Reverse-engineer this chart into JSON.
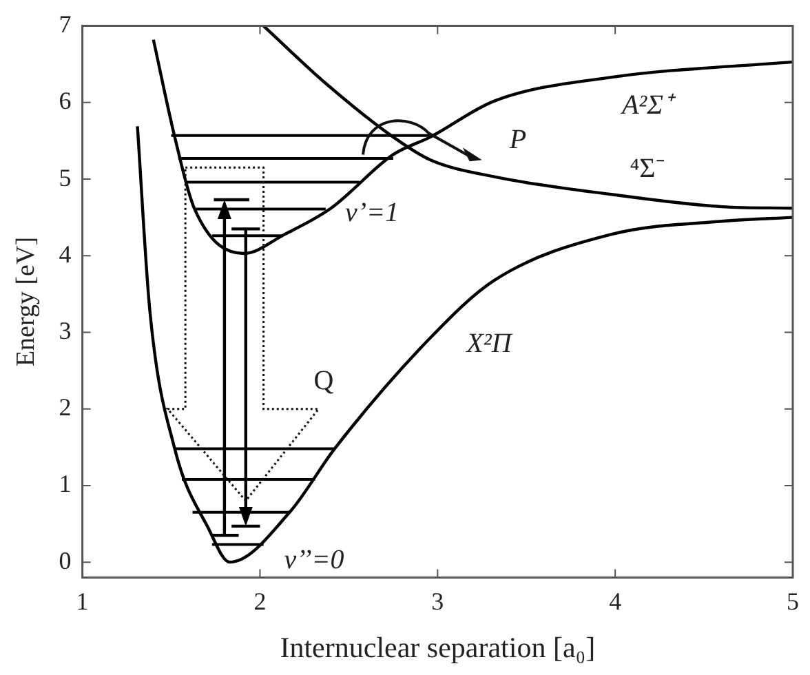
{
  "chart_data": {
    "type": "line",
    "xlabel": "Internuclear separation [a₀]",
    "ylabel": "Energy [eV]",
    "xlim": [
      1,
      5
    ],
    "xticks": [
      1,
      2,
      3,
      4,
      5
    ],
    "ylim": [
      -0.2,
      7
    ],
    "yticks": [
      0,
      1,
      2,
      3,
      4,
      5,
      6,
      7
    ],
    "marker": "none",
    "line_style": "solid",
    "series": [
      {
        "color": "#000000",
        "x": [
          1.31,
          1.38,
          1.52,
          1.71,
          1.83,
          2.17,
          2.42,
          2.96,
          3.32,
          3.98,
          4.6,
          5.0
        ],
        "values": [
          5.69,
          3.28,
          1.48,
          0.44,
          0.0,
          0.66,
          1.48,
          2.93,
          3.68,
          4.28,
          4.45,
          4.5
        ]
      },
      {
        "color": "#000000",
        "x": [
          1.4,
          1.52,
          1.63,
          1.91,
          2.14,
          2.4,
          2.75,
          2.96,
          3.32,
          3.98,
          5.0
        ],
        "values": [
          6.82,
          5.55,
          4.62,
          4.03,
          4.28,
          4.62,
          5.32,
          5.55,
          6.02,
          6.33,
          6.53
        ]
      },
      {
        "color": "#000000",
        "x": [
          2.02,
          2.37,
          2.75,
          2.96,
          3.32,
          3.98,
          4.6,
          5.0
        ],
        "values": [
          7.0,
          6.25,
          5.55,
          5.25,
          5.03,
          4.8,
          4.64,
          4.62
        ]
      },
      {
        "color": "#000000",
        "x": [
          1.5,
          2.96
        ],
        "values": [
          5.57,
          5.57
        ]
      },
      {
        "color": "#000000",
        "x": [
          1.54,
          2.75
        ],
        "values": [
          5.27,
          5.27
        ]
      },
      {
        "color": "#000000",
        "x": [
          1.59,
          2.56
        ],
        "values": [
          4.96,
          4.96
        ]
      },
      {
        "color": "#000000",
        "x": [
          1.64,
          2.37
        ],
        "values": [
          4.61,
          4.61
        ]
      },
      {
        "color": "#000000",
        "x": [
          1.73,
          2.13
        ],
        "values": [
          4.26,
          4.26
        ]
      },
      {
        "color": "#000000",
        "x": [
          1.52,
          2.42
        ],
        "values": [
          1.48,
          1.48
        ]
      },
      {
        "color": "#000000",
        "x": [
          1.56,
          2.31
        ],
        "values": [
          1.08,
          1.08
        ]
      },
      {
        "color": "#000000",
        "x": [
          1.62,
          2.17
        ],
        "values": [
          0.65,
          0.65
        ]
      },
      {
        "color": "#000000",
        "x": [
          1.73,
          2.02
        ],
        "values": [
          0.23,
          0.23
        ]
      }
    ],
    "annotations": [
      "A²Σ⁺",
      "⁴Σ⁻",
      "X²Π",
      "v’=1",
      "v’’=0",
      "Q",
      "P"
    ]
  }
}
